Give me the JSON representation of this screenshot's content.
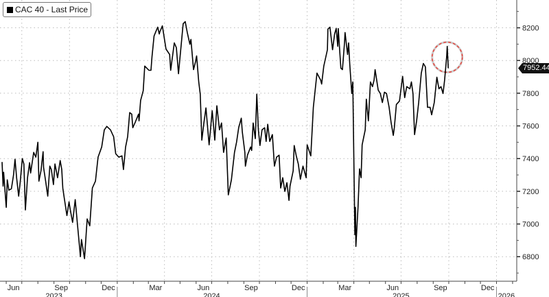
{
  "chart_data": {
    "type": "line",
    "title": "",
    "legend": {
      "label": "CAC 40 - Last Price",
      "placement": "top-left"
    },
    "series": [
      {
        "name": "CAC 40 - Last Price",
        "color": "#000000"
      }
    ],
    "last_price_label": "7952.44",
    "ylim": [
      6650,
      8370
    ],
    "xlim": [
      "2023-05-20",
      "2026-02-09"
    ],
    "y_ticks": [
      6800,
      7000,
      7200,
      7400,
      7600,
      7800,
      8000,
      8200
    ],
    "y_tick_labels": [
      "6800",
      "7000",
      "7200",
      "7400",
      "7600",
      "7800",
      "8000",
      "8200"
    ],
    "x_month_labels": [
      {
        "date": "2023-06-15",
        "label": "Jun"
      },
      {
        "date": "2023-09-15",
        "label": "Sep"
      },
      {
        "date": "2023-12-15",
        "label": "Dec"
      },
      {
        "date": "2024-03-15",
        "label": "Mar"
      },
      {
        "date": "2024-06-15",
        "label": "Jun"
      },
      {
        "date": "2024-09-15",
        "label": "Sep"
      },
      {
        "date": "2024-12-15",
        "label": "Dec"
      },
      {
        "date": "2025-03-15",
        "label": "Mar"
      },
      {
        "date": "2025-06-15",
        "label": "Jun"
      },
      {
        "date": "2025-09-15",
        "label": "Sep"
      },
      {
        "date": "2025-12-15",
        "label": "Dec"
      }
    ],
    "x_year_labels": [
      {
        "date": "2023-09-01",
        "label": "2023"
      },
      {
        "date": "2024-07-01",
        "label": "2024"
      },
      {
        "date": "2025-07-01",
        "label": "2025"
      },
      {
        "date": "2026-01-20",
        "label": "2026"
      }
    ],
    "grid": true,
    "annotation": {
      "type": "dashed-circle",
      "color": "#e8423a",
      "date": "2025-09-28",
      "value": 8020
    },
    "points": [
      [
        "2023-05-24",
        7379
      ],
      [
        "2023-05-26",
        7232
      ],
      [
        "2023-05-27",
        7316
      ],
      [
        "2023-06-01",
        7102
      ],
      [
        "2023-06-03",
        7270
      ],
      [
        "2023-06-06",
        7207
      ],
      [
        "2023-06-11",
        7215
      ],
      [
        "2023-06-15",
        7299
      ],
      [
        "2023-06-18",
        7396
      ],
      [
        "2023-06-21",
        7283
      ],
      [
        "2023-06-25",
        7170
      ],
      [
        "2023-06-28",
        7258
      ],
      [
        "2023-07-02",
        7400
      ],
      [
        "2023-07-05",
        7367
      ],
      [
        "2023-07-08",
        7086
      ],
      [
        "2023-07-12",
        7283
      ],
      [
        "2023-07-16",
        7375
      ],
      [
        "2023-07-18",
        7312
      ],
      [
        "2023-07-24",
        7438
      ],
      [
        "2023-07-28",
        7409
      ],
      [
        "2023-08-01",
        7500
      ],
      [
        "2023-08-03",
        7262
      ],
      [
        "2023-08-07",
        7325
      ],
      [
        "2023-08-11",
        7442
      ],
      [
        "2023-08-12",
        7346
      ],
      [
        "2023-08-16",
        7262
      ],
      [
        "2023-08-20",
        7170
      ],
      [
        "2023-08-24",
        7354
      ],
      [
        "2023-08-27",
        7333
      ],
      [
        "2023-08-31",
        7241
      ],
      [
        "2023-09-03",
        7367
      ],
      [
        "2023-09-08",
        7283
      ],
      [
        "2023-09-13",
        7388
      ],
      [
        "2023-09-16",
        7333
      ],
      [
        "2023-09-18",
        7220
      ],
      [
        "2023-09-21",
        7157
      ],
      [
        "2023-09-26",
        7052
      ],
      [
        "2023-09-30",
        7136
      ],
      [
        "2023-10-02",
        7094
      ],
      [
        "2023-10-07",
        7010
      ],
      [
        "2023-10-12",
        7149
      ],
      [
        "2023-10-16",
        7010
      ],
      [
        "2023-10-22",
        6800
      ],
      [
        "2023-10-24",
        6905
      ],
      [
        "2023-10-30",
        6788
      ],
      [
        "2023-11-04",
        7031
      ],
      [
        "2023-11-09",
        6989
      ],
      [
        "2023-11-14",
        7220
      ],
      [
        "2023-11-20",
        7262
      ],
      [
        "2023-11-25",
        7409
      ],
      [
        "2023-12-02",
        7471
      ],
      [
        "2023-12-07",
        7576
      ],
      [
        "2023-12-12",
        7597
      ],
      [
        "2023-12-19",
        7576
      ],
      [
        "2023-12-25",
        7534
      ],
      [
        "2023-12-29",
        7430
      ],
      [
        "2024-01-04",
        7409
      ],
      [
        "2024-01-10",
        7417
      ],
      [
        "2024-01-13",
        7333
      ],
      [
        "2024-01-17",
        7471
      ],
      [
        "2024-01-21",
        7534
      ],
      [
        "2024-01-25",
        7681
      ],
      [
        "2024-01-29",
        7672
      ],
      [
        "2024-01-31",
        7589
      ],
      [
        "2024-02-04",
        7618
      ],
      [
        "2024-02-11",
        7672
      ],
      [
        "2024-02-12",
        7631
      ],
      [
        "2024-02-15",
        7756
      ],
      [
        "2024-02-20",
        7815
      ],
      [
        "2024-02-23",
        7966
      ],
      [
        "2024-03-02",
        7940
      ],
      [
        "2024-03-06",
        7940
      ],
      [
        "2024-03-08",
        8024
      ],
      [
        "2024-03-12",
        8150
      ],
      [
        "2024-03-19",
        8204
      ],
      [
        "2024-03-22",
        8162
      ],
      [
        "2024-03-23",
        8175
      ],
      [
        "2024-03-28",
        8212
      ],
      [
        "2024-04-04",
        8070
      ],
      [
        "2024-04-11",
        8037
      ],
      [
        "2024-04-13",
        7940
      ],
      [
        "2024-04-20",
        8108
      ],
      [
        "2024-04-24",
        8078
      ],
      [
        "2024-04-28",
        7919
      ],
      [
        "2024-05-07",
        8225
      ],
      [
        "2024-05-11",
        8238
      ],
      [
        "2024-05-15",
        8171
      ],
      [
        "2024-05-20",
        8099
      ],
      [
        "2024-05-22",
        8129
      ],
      [
        "2024-05-27",
        7944
      ],
      [
        "2024-05-31",
        7995
      ],
      [
        "2024-06-02",
        8028
      ],
      [
        "2024-06-06",
        7869
      ],
      [
        "2024-06-09",
        7794
      ],
      [
        "2024-06-12",
        7513
      ],
      [
        "2024-06-16",
        7618
      ],
      [
        "2024-06-20",
        7710
      ],
      [
        "2024-06-26",
        7484
      ],
      [
        "2024-07-02",
        7693
      ],
      [
        "2024-07-07",
        7513
      ],
      [
        "2024-07-11",
        7723
      ],
      [
        "2024-07-16",
        7576
      ],
      [
        "2024-07-20",
        7618
      ],
      [
        "2024-07-24",
        7438
      ],
      [
        "2024-07-29",
        7526
      ],
      [
        "2024-08-02",
        7178
      ],
      [
        "2024-08-08",
        7270
      ],
      [
        "2024-08-14",
        7438
      ],
      [
        "2024-08-18",
        7500
      ],
      [
        "2024-08-22",
        7589
      ],
      [
        "2024-08-27",
        7647
      ],
      [
        "2024-08-29",
        7563
      ],
      [
        "2024-09-03",
        7438
      ],
      [
        "2024-09-04",
        7354
      ],
      [
        "2024-09-08",
        7421
      ],
      [
        "2024-09-14",
        7471
      ],
      [
        "2024-09-16",
        7450
      ],
      [
        "2024-09-19",
        7618
      ],
      [
        "2024-09-23",
        7522
      ],
      [
        "2024-09-26",
        7794
      ],
      [
        "2024-09-29",
        7576
      ],
      [
        "2024-10-02",
        7480
      ],
      [
        "2024-10-06",
        7576
      ],
      [
        "2024-10-11",
        7589
      ],
      [
        "2024-10-14",
        7505
      ],
      [
        "2024-10-17",
        7610
      ],
      [
        "2024-10-21",
        7505
      ],
      [
        "2024-10-26",
        7547
      ],
      [
        "2024-10-30",
        7354
      ],
      [
        "2024-11-03",
        7409
      ],
      [
        "2024-11-08",
        7421
      ],
      [
        "2024-11-11",
        7220
      ],
      [
        "2024-11-15",
        7283
      ],
      [
        "2024-11-19",
        7199
      ],
      [
        "2024-11-23",
        7253
      ],
      [
        "2024-11-27",
        7144
      ],
      [
        "2024-11-29",
        7232
      ],
      [
        "2024-12-05",
        7325
      ],
      [
        "2024-12-07",
        7480
      ],
      [
        "2024-12-11",
        7417
      ],
      [
        "2024-12-15",
        7367
      ],
      [
        "2024-12-19",
        7274
      ],
      [
        "2024-12-24",
        7354
      ],
      [
        "2024-12-30",
        7283
      ],
      [
        "2025-01-01",
        7484
      ],
      [
        "2025-01-08",
        7417
      ],
      [
        "2025-01-13",
        7714
      ],
      [
        "2025-01-20",
        7923
      ],
      [
        "2025-01-27",
        7881
      ],
      [
        "2025-01-29",
        7856
      ],
      [
        "2025-02-02",
        7965
      ],
      [
        "2025-02-09",
        8066
      ],
      [
        "2025-02-10",
        8192
      ],
      [
        "2025-02-14",
        8204
      ],
      [
        "2025-02-17",
        8120
      ],
      [
        "2025-02-19",
        8066
      ],
      [
        "2025-02-23",
        8162
      ],
      [
        "2025-02-26",
        8196
      ],
      [
        "2025-03-01",
        8087
      ],
      [
        "2025-03-02",
        8196
      ],
      [
        "2025-03-07",
        7953
      ],
      [
        "2025-03-10",
        7944
      ],
      [
        "2025-03-14",
        8108
      ],
      [
        "2025-03-15",
        8171
      ],
      [
        "2025-03-20",
        8037
      ],
      [
        "2025-03-22",
        8108
      ],
      [
        "2025-03-24",
        7982
      ],
      [
        "2025-03-28",
        7798
      ],
      [
        "2025-03-30",
        7869
      ],
      [
        "2025-04-03",
        6935
      ],
      [
        "2025-04-04",
        7102
      ],
      [
        "2025-04-05",
        6863
      ],
      [
        "2025-04-09",
        7102
      ],
      [
        "2025-04-12",
        7337
      ],
      [
        "2025-04-15",
        7283
      ],
      [
        "2025-04-17",
        7484
      ],
      [
        "2025-04-23",
        7576
      ],
      [
        "2025-04-25",
        7764
      ],
      [
        "2025-04-29",
        7631
      ],
      [
        "2025-05-03",
        7869
      ],
      [
        "2025-05-07",
        7840
      ],
      [
        "2025-05-10",
        7881
      ],
      [
        "2025-05-12",
        7944
      ],
      [
        "2025-05-18",
        7819
      ],
      [
        "2025-05-22",
        7798
      ],
      [
        "2025-05-26",
        7743
      ],
      [
        "2025-05-30",
        7806
      ],
      [
        "2025-06-03",
        7798
      ],
      [
        "2025-06-08",
        7714
      ],
      [
        "2025-06-12",
        7618
      ],
      [
        "2025-06-16",
        7542
      ],
      [
        "2025-06-18",
        7589
      ],
      [
        "2025-06-22",
        7731
      ],
      [
        "2025-06-28",
        7752
      ],
      [
        "2025-07-04",
        7903
      ],
      [
        "2025-07-08",
        7773
      ],
      [
        "2025-07-12",
        7840
      ],
      [
        "2025-07-18",
        7827
      ],
      [
        "2025-07-21",
        7869
      ],
      [
        "2025-07-24",
        7798
      ],
      [
        "2025-07-27",
        7547
      ],
      [
        "2025-07-31",
        7631
      ],
      [
        "2025-08-04",
        7743
      ],
      [
        "2025-08-09",
        7923
      ],
      [
        "2025-08-13",
        7982
      ],
      [
        "2025-08-17",
        7961
      ],
      [
        "2025-08-21",
        7714
      ],
      [
        "2025-08-26",
        7714
      ],
      [
        "2025-08-29",
        7668
      ],
      [
        "2025-09-03",
        7743
      ],
      [
        "2025-09-08",
        7898
      ],
      [
        "2025-09-12",
        7827
      ],
      [
        "2025-09-16",
        7840
      ],
      [
        "2025-09-20",
        7798
      ],
      [
        "2025-09-23",
        7881
      ],
      [
        "2025-09-27",
        8024
      ],
      [
        "2025-09-28",
        8087
      ],
      [
        "2025-09-30",
        7952.44
      ]
    ]
  }
}
